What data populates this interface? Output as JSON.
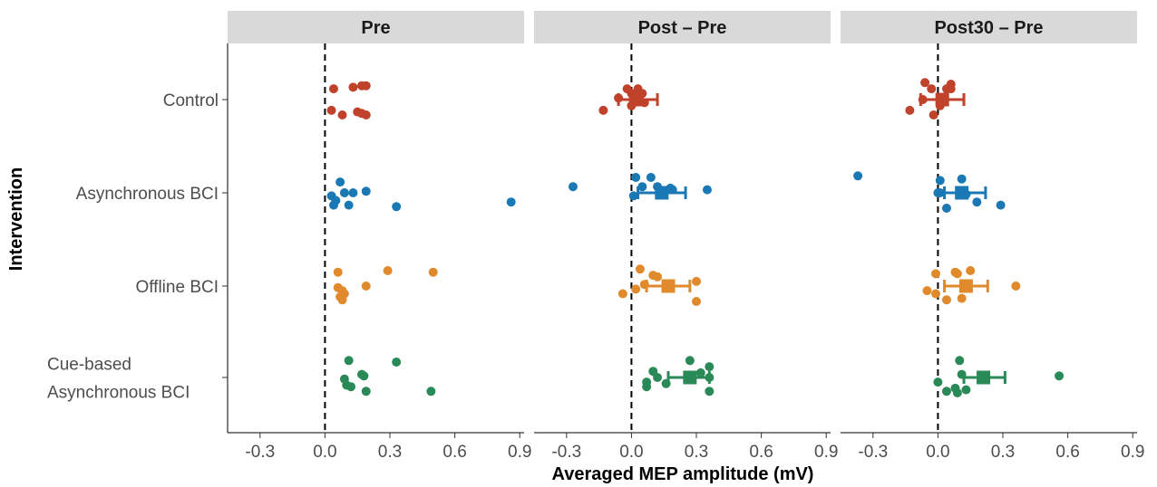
{
  "chart_data": {
    "type": "scatter",
    "xlabel": "Averaged MEP amplitude (mV)",
    "ylabel": "Intervention",
    "xlim": [
      -0.45,
      0.92
    ],
    "xticks": [
      -0.3,
      0.0,
      0.3,
      0.6,
      0.9
    ],
    "xtick_labels": [
      "-0.3",
      "0.0",
      "0.3",
      "0.6",
      "0.9"
    ],
    "reference_line_x": 0,
    "grid": false,
    "categories": [
      "Control",
      "Asynchronous BCI",
      "Offline BCI",
      "Cue-based Asynchronous BCI"
    ],
    "category_labels": [
      [
        "Control"
      ],
      [
        "Asynchronous BCI"
      ],
      [
        "Offline BCI"
      ],
      [
        "Cue-based",
        "Asynchronous BCI"
      ]
    ],
    "colors": {
      "Control": "#c0422b",
      "Asynchronous BCI": "#1a78b4",
      "Offline BCI": "#e08a2c",
      "Cue-based Asynchronous BCI": "#2a8a57"
    },
    "facets": [
      {
        "title": "Pre",
        "groups": [
          {
            "category": "Control",
            "points": [
              [
                0.04,
                0.07
              ],
              [
                0.13,
                0.08
              ],
              [
                0.17,
                0.09
              ],
              [
                0.19,
                0.09
              ],
              [
                0.03,
                -0.07
              ],
              [
                0.15,
                -0.08
              ],
              [
                0.17,
                -0.09
              ],
              [
                0.08,
                -0.1
              ],
              [
                0.19,
                -0.1
              ]
            ]
          },
          {
            "category": "Asynchronous BCI",
            "points": [
              [
                0.07,
                0.07
              ],
              [
                0.03,
                -0.02
              ],
              [
                0.05,
                -0.05
              ],
              [
                0.09,
                0.0
              ],
              [
                0.13,
                0.0
              ],
              [
                0.19,
                0.01
              ],
              [
                0.04,
                -0.08
              ],
              [
                0.11,
                -0.08
              ],
              [
                0.33,
                -0.09
              ],
              [
                0.86,
                -0.06
              ]
            ]
          },
          {
            "category": "Offline BCI",
            "points": [
              [
                0.06,
                0.09
              ],
              [
                0.29,
                0.1
              ],
              [
                0.5,
                0.09
              ],
              [
                0.06,
                -0.01
              ],
              [
                0.08,
                -0.03
              ],
              [
                0.09,
                -0.05
              ],
              [
                0.19,
                0.0
              ],
              [
                0.07,
                -0.07
              ],
              [
                0.08,
                -0.09
              ]
            ]
          },
          {
            "category": "Cue-based Asynchronous BCI",
            "points": [
              [
                0.11,
                0.11
              ],
              [
                0.33,
                0.1
              ],
              [
                0.17,
                0.02
              ],
              [
                0.18,
                0.01
              ],
              [
                0.09,
                -0.01
              ],
              [
                0.1,
                -0.05
              ],
              [
                0.12,
                -0.06
              ],
              [
                0.19,
                -0.09
              ],
              [
                0.49,
                -0.09
              ]
            ]
          }
        ]
      },
      {
        "title": "Post – Pre",
        "groups": [
          {
            "category": "Control",
            "points": [
              [
                -0.02,
                0.07
              ],
              [
                0.03,
                0.07
              ],
              [
                0.0,
                0.04
              ],
              [
                0.02,
                0.02
              ],
              [
                0.05,
                0.04
              ],
              [
                -0.06,
                0.01
              ],
              [
                0.06,
                -0.02
              ],
              [
                -0.13,
                -0.07
              ],
              [
                0.0,
                -0.04
              ],
              [
                0.04,
                -0.01
              ]
            ],
            "mean": 0.02,
            "ci": [
              -0.06,
              0.12
            ]
          },
          {
            "category": "Asynchronous BCI",
            "points": [
              [
                0.02,
                0.1
              ],
              [
                0.09,
                0.1
              ],
              [
                0.05,
                0.04
              ],
              [
                0.12,
                0.04
              ],
              [
                0.18,
                0.03
              ],
              [
                0.01,
                -0.02
              ],
              [
                0.19,
                0.02
              ],
              [
                0.35,
                0.02
              ],
              [
                -0.27,
                0.04
              ]
            ],
            "mean": 0.14,
            "ci": [
              0.03,
              0.25
            ]
          },
          {
            "category": "Offline BCI",
            "points": [
              [
                0.04,
                0.11
              ],
              [
                0.1,
                0.07
              ],
              [
                0.12,
                0.06
              ],
              [
                0.06,
                0.01
              ],
              [
                0.3,
                0.03
              ],
              [
                0.02,
                -0.02
              ],
              [
                -0.04,
                -0.05
              ],
              [
                0.3,
                -0.1
              ]
            ],
            "mean": 0.17,
            "ci": [
              0.07,
              0.27
            ]
          },
          {
            "category": "Cue-based Asynchronous BCI",
            "points": [
              [
                0.27,
                0.11
              ],
              [
                0.36,
                0.07
              ],
              [
                0.1,
                0.04
              ],
              [
                0.32,
                0.03
              ],
              [
                0.12,
                0.0
              ],
              [
                0.36,
                0.0
              ],
              [
                0.07,
                -0.03
              ],
              [
                0.16,
                -0.04
              ],
              [
                0.07,
                -0.06
              ],
              [
                0.36,
                -0.09
              ]
            ],
            "mean": 0.27,
            "ci": [
              0.17,
              0.36
            ]
          }
        ]
      },
      {
        "title": "Post30 – Pre",
        "groups": [
          {
            "category": "Control",
            "points": [
              [
                -0.06,
                0.11
              ],
              [
                0.06,
                0.1
              ],
              [
                -0.03,
                0.07
              ],
              [
                0.04,
                0.07
              ],
              [
                0.06,
                0.07
              ],
              [
                0.01,
                0.01
              ],
              [
                -0.07,
                0.0
              ],
              [
                0.01,
                -0.04
              ],
              [
                -0.13,
                -0.07
              ],
              [
                -0.02,
                -0.1
              ]
            ],
            "mean": 0.02,
            "ci": [
              -0.08,
              0.12
            ]
          },
          {
            "category": "Asynchronous BCI",
            "points": [
              [
                -0.37,
                0.11
              ],
              [
                0.01,
                0.08
              ],
              [
                0.11,
                0.09
              ],
              [
                0.0,
                0.0
              ],
              [
                0.01,
                0.0
              ],
              [
                0.13,
                -0.01
              ],
              [
                0.18,
                -0.06
              ],
              [
                0.29,
                -0.08
              ],
              [
                0.04,
                -0.1
              ]
            ],
            "mean": 0.11,
            "ci": [
              0.03,
              0.22
            ]
          },
          {
            "category": "Offline BCI",
            "points": [
              [
                0.08,
                0.09
              ],
              [
                0.15,
                0.1
              ],
              [
                0.09,
                0.08
              ],
              [
                -0.01,
                0.08
              ],
              [
                0.36,
                0.0
              ],
              [
                -0.05,
                -0.03
              ],
              [
                -0.01,
                -0.05
              ],
              [
                0.04,
                -0.09
              ],
              [
                0.11,
                -0.08
              ]
            ],
            "mean": 0.13,
            "ci": [
              0.03,
              0.23
            ]
          },
          {
            "category": "Cue-based Asynchronous BCI",
            "points": [
              [
                0.1,
                0.11
              ],
              [
                0.11,
                0.02
              ],
              [
                0.56,
                0.01
              ],
              [
                0.0,
                -0.03
              ],
              [
                0.08,
                -0.07
              ],
              [
                0.13,
                -0.08
              ],
              [
                0.04,
                -0.09
              ],
              [
                0.09,
                -0.1
              ]
            ],
            "mean": 0.21,
            "ci": [
              0.12,
              0.31
            ]
          }
        ]
      }
    ]
  }
}
